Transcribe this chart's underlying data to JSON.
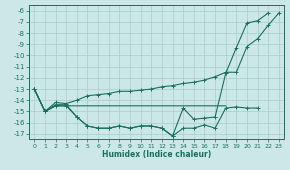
{
  "xlabel": "Humidex (Indice chaleur)",
  "x": [
    0,
    1,
    2,
    3,
    4,
    5,
    6,
    7,
    8,
    9,
    10,
    11,
    12,
    13,
    14,
    15,
    16,
    17,
    18,
    19,
    20,
    21,
    22,
    23
  ],
  "line1": [
    -13.0,
    -15.0,
    -14.5,
    -14.5,
    -14.5,
    -14.5,
    -14.5,
    -14.5,
    -14.5,
    -14.5,
    -14.5,
    -14.5,
    -14.5,
    -14.5,
    -14.5,
    -14.5,
    -14.5,
    -14.5,
    -14.5,
    null,
    null,
    null,
    null,
    null
  ],
  "line2": [
    -13.0,
    -15.0,
    -14.5,
    -14.5,
    -15.5,
    -16.3,
    -16.5,
    -16.5,
    -16.3,
    -16.5,
    -16.3,
    -16.3,
    -16.5,
    -17.2,
    -16.5,
    -16.5,
    -16.2,
    -16.5,
    -14.7,
    -14.6,
    -14.7,
    -14.7,
    null,
    null
  ],
  "line3": [
    -13.0,
    -15.0,
    -14.4,
    -14.4,
    -15.5,
    -16.3,
    -16.5,
    -16.5,
    -16.3,
    -16.5,
    -16.3,
    -16.3,
    -16.5,
    -17.2,
    -14.7,
    -15.7,
    -15.6,
    -15.5,
    -11.6,
    -9.3,
    -7.1,
    -6.9,
    -6.2,
    null
  ],
  "line4": [
    -13.0,
    -15.0,
    -14.2,
    -14.3,
    -14.0,
    -13.6,
    -13.5,
    -13.4,
    -13.2,
    -13.2,
    -13.1,
    -13.0,
    -12.8,
    -12.7,
    -12.5,
    -12.4,
    -12.2,
    -11.9,
    -11.5,
    -11.5,
    -9.2,
    -8.5,
    -7.3,
    -6.2
  ],
  "line_color": "#1a7060",
  "bg_color": "#cce8e6",
  "grid_color": "#a8ceca",
  "ylim": [
    -17.5,
    -5.5
  ],
  "xlim": [
    -0.5,
    23.5
  ],
  "yticks": [
    -6,
    -7,
    -8,
    -9,
    -10,
    -11,
    -12,
    -13,
    -14,
    -15,
    -16,
    -17
  ],
  "xticks": [
    0,
    1,
    2,
    3,
    4,
    5,
    6,
    7,
    8,
    9,
    10,
    11,
    12,
    13,
    14,
    15,
    16,
    17,
    18,
    19,
    20,
    21,
    22,
    23
  ]
}
